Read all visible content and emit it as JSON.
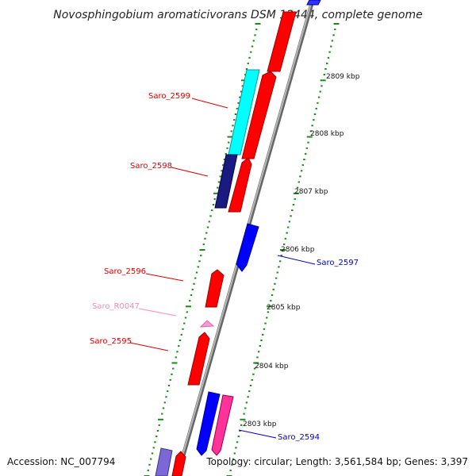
{
  "title": "Novosphingobium aromaticivorans DSM 12444, complete genome",
  "accession": "Accession: NC_007794",
  "topology": "Topology: circular; Length: 3,561,584 bp; Genes: 3,397",
  "colors": {
    "forward_cds": "#ff0000",
    "reverse_cds": "#0000ff",
    "navy_gene": "#1a1a80",
    "cyan_gene": "#00ffff",
    "pink_gene": "#ff3399",
    "rna": "#ff99cc",
    "backbone": "#888888",
    "tick": "#1a8a1a",
    "label_red": "#dd0000",
    "label_blue": "#0000cc",
    "label_pink": "#ff88bb"
  },
  "scale_labels": [
    "2809 kbp",
    "2808 kbp",
    "2807 kbp",
    "2806 kbp",
    "2805 kbp",
    "2804 kbp",
    "2803 kbp"
  ],
  "gene_labels": [
    {
      "text": "Saro_2599",
      "color": "label_red"
    },
    {
      "text": "Saro_2598",
      "color": "label_red"
    },
    {
      "text": "Saro_2597",
      "color": "label_blue"
    },
    {
      "text": "Saro_2596",
      "color": "label_red"
    },
    {
      "text": "Saro_R0047",
      "color": "label_pink"
    },
    {
      "text": "Saro_2595",
      "color": "label_red"
    },
    {
      "text": "Saro_2594",
      "color": "label_blue"
    }
  ]
}
